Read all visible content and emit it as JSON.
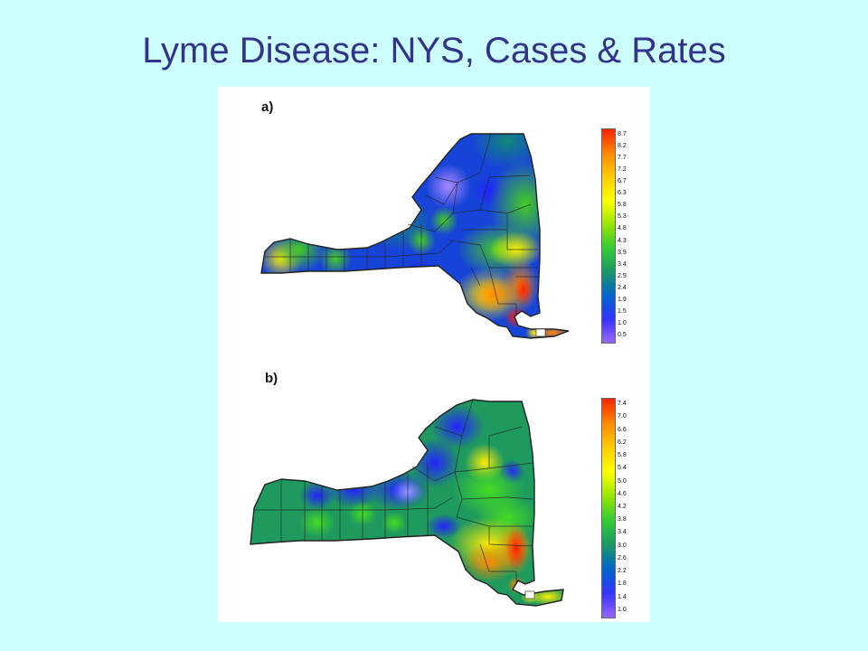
{
  "slide": {
    "title": "Lyme Disease: NYS, Cases & Rates"
  },
  "panels": [
    {
      "label": "a)",
      "legend_ticks": [
        "8.7",
        "8.2",
        "7.7",
        "7.2",
        "6.7",
        "6.3",
        "5.8",
        "5.3",
        "4.8",
        "4.3",
        "3.9",
        "3.4",
        "2.9",
        "2.4",
        "1.9",
        "1.5",
        "1.0",
        "0.5"
      ],
      "legend_range": [
        0.5,
        8.7
      ]
    },
    {
      "label": "b)",
      "legend_ticks": [
        "7.4",
        "7.0",
        "6.6",
        "6.2",
        "5.8",
        "5.4",
        "5.0",
        "4.6",
        "4.2",
        "3.8",
        "3.4",
        "3.0",
        "2.6",
        "2.2",
        "1.8",
        "1.4",
        "1.0"
      ],
      "legend_range": [
        1.0,
        7.4
      ]
    }
  ],
  "colors": {
    "background": "#ccffff",
    "title": "#33338c",
    "scale": [
      "#9966ff",
      "#3333ff",
      "#0066cc",
      "#1a9966",
      "#33cc33",
      "#99e600",
      "#ffff00",
      "#ffcc00",
      "#ff8800",
      "#ff2200"
    ]
  }
}
